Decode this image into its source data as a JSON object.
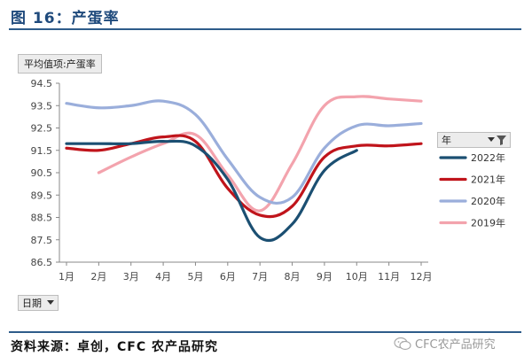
{
  "figure": {
    "title": "图 16：产蛋率",
    "source": "资料来源：卓创，CFC 农产品研究",
    "watermark": "CFC农产品研究"
  },
  "pivot": {
    "value_field": "平均值项:产蛋率",
    "row_field": "日期",
    "legend_field": "年"
  },
  "colors": {
    "2022": "#1b4f72",
    "2021": "#c0141b",
    "2020": "#9aaedb",
    "2019": "#f3a3ad",
    "title": "#1f4a7c"
  },
  "chart_data": {
    "type": "line",
    "categories": [
      "1月",
      "2月",
      "3月",
      "4月",
      "5月",
      "6月",
      "7月",
      "8月",
      "9月",
      "10月",
      "11月",
      "12月"
    ],
    "ylim": [
      86.5,
      94.5
    ],
    "yticks": [
      "86.5",
      "87.5",
      "88.5",
      "89.5",
      "90.5",
      "91.5",
      "92.5",
      "93.5",
      "94.5"
    ],
    "grid": false,
    "legend_position": "right",
    "series": [
      {
        "name": "2022年",
        "key": "2022",
        "values": [
          91.8,
          91.8,
          91.8,
          91.9,
          91.7,
          90.2,
          87.6,
          88.2,
          90.6,
          91.5,
          null,
          null
        ]
      },
      {
        "name": "2021年",
        "key": "2021",
        "values": [
          91.6,
          91.5,
          91.8,
          92.1,
          91.9,
          89.8,
          88.6,
          89.0,
          91.2,
          91.7,
          91.7,
          91.8
        ]
      },
      {
        "name": "2020年",
        "key": "2020",
        "values": [
          93.6,
          93.4,
          93.5,
          93.7,
          93.1,
          91.1,
          89.4,
          89.4,
          91.6,
          92.6,
          92.6,
          92.7
        ]
      },
      {
        "name": "2019年",
        "key": "2019",
        "values": [
          null,
          90.5,
          91.2,
          91.8,
          92.2,
          90.4,
          88.8,
          90.9,
          93.5,
          93.9,
          93.8,
          93.7
        ]
      }
    ]
  }
}
